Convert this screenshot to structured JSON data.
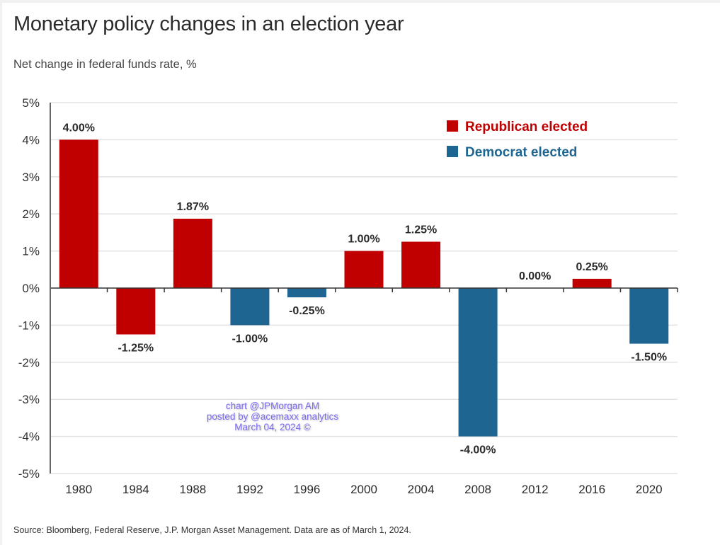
{
  "chart_data": {
    "type": "bar",
    "title": "Monetary policy changes in an election year",
    "subtitle": "Net change in federal funds rate, %",
    "xlabel": "",
    "ylabel": "Net change in federal funds rate, %",
    "categories": [
      "1980",
      "1984",
      "1988",
      "1992",
      "1996",
      "2000",
      "2004",
      "2008",
      "2012",
      "2016",
      "2020"
    ],
    "values": [
      4.0,
      -1.25,
      1.87,
      -1.0,
      -0.25,
      1.0,
      1.25,
      -4.0,
      0.0,
      0.25,
      -1.5
    ],
    "party": [
      "Republican",
      "Republican",
      "Republican",
      "Democrat",
      "Democrat",
      "Republican",
      "Republican",
      "Democrat",
      "Democrat",
      "Republican",
      "Democrat"
    ],
    "data_labels": [
      "4.00%",
      "-1.25%",
      "1.87%",
      "-1.00%",
      "-0.25%",
      "1.00%",
      "1.25%",
      "-4.00%",
      "0.00%",
      "0.25%",
      "-1.50%"
    ],
    "ylim": [
      -5,
      5
    ],
    "yticks": [
      5,
      4,
      3,
      2,
      1,
      0,
      -1,
      -2,
      -3,
      -4,
      -5
    ],
    "ytick_labels": [
      "5%",
      "4%",
      "3%",
      "2%",
      "1%",
      "0%",
      "-1%",
      "-2%",
      "-3%",
      "-4%",
      "-5%"
    ],
    "grid": true,
    "legend": {
      "placement": "top-right",
      "entries": [
        {
          "name": "Republican elected",
          "color": "#c00000"
        },
        {
          "name": "Democrat elected",
          "color": "#1f6591"
        }
      ]
    },
    "source": "Source: Bloomberg, Federal Reserve, J.P. Morgan Asset Management. Data are as of March 1, 2024."
  },
  "watermark": {
    "line1": "chart @JPMorgan AM",
    "line2": "posted by @acemaxx analytics",
    "line3": "March 04, 2024 ©"
  },
  "colors": {
    "Republican": "#c00000",
    "Democrat": "#1f6591",
    "gridline": "#e2e2e2",
    "axis": "#333333"
  }
}
